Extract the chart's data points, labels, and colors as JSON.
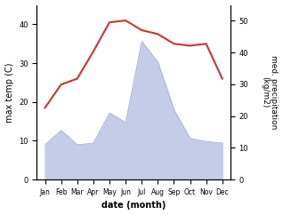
{
  "months": [
    "Jan",
    "Feb",
    "Mar",
    "Apr",
    "May",
    "Jun",
    "Jul",
    "Aug",
    "Sep",
    "Oct",
    "Nov",
    "Dec"
  ],
  "month_positions": [
    1,
    2,
    3,
    4,
    5,
    6,
    7,
    8,
    9,
    10,
    11,
    12
  ],
  "temperature": [
    18.5,
    24.5,
    26.0,
    33.0,
    40.5,
    41.0,
    38.5,
    37.5,
    35.0,
    34.5,
    35.0,
    26.0
  ],
  "precipitation": [
    11.0,
    15.5,
    11.0,
    11.5,
    21.0,
    18.0,
    43.5,
    37.0,
    22.0,
    13.0,
    12.0,
    11.5
  ],
  "temp_color": "#cc3333",
  "precip_fill_color": "#c5cce8",
  "precip_edge_color": "#aab4d8",
  "ylabel_left": "max temp (C)",
  "ylabel_right": "med. precipitation\n(kg/m2)",
  "xlabel": "date (month)",
  "ylim_left": [
    0,
    45
  ],
  "ylim_right": [
    0,
    55
  ],
  "yticks_left": [
    0,
    10,
    20,
    30,
    40
  ],
  "yticks_right": [
    0,
    10,
    20,
    30,
    40,
    50
  ],
  "background_color": "#ffffff"
}
